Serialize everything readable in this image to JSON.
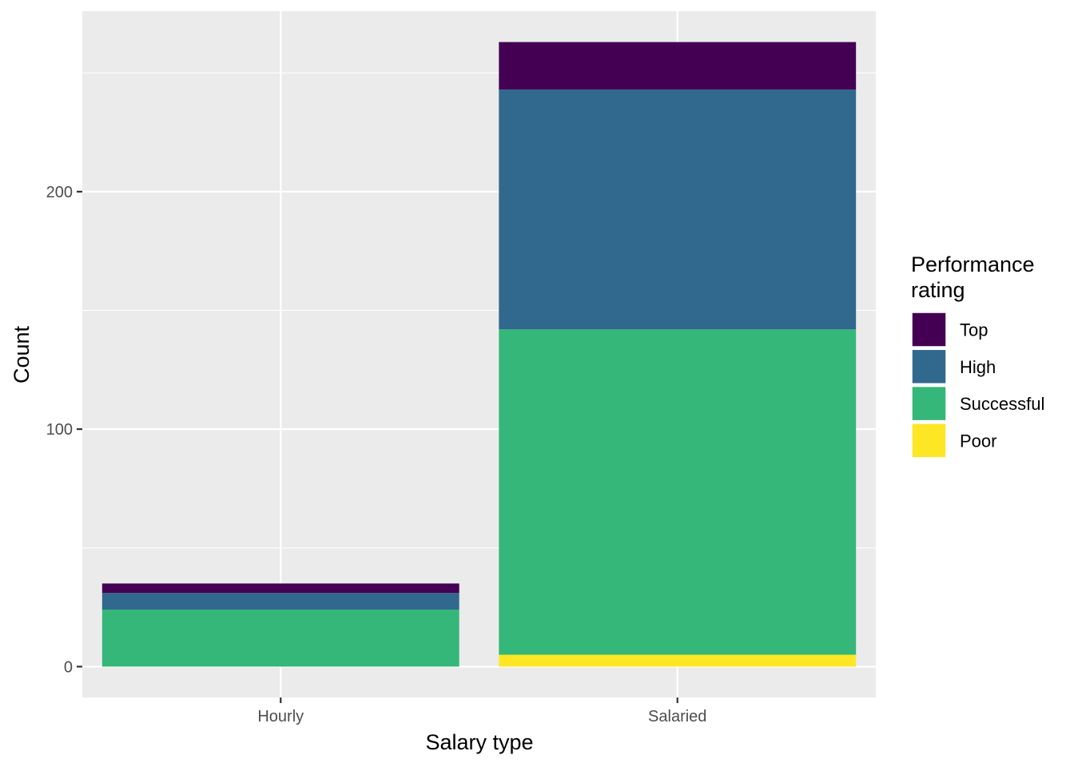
{
  "chart_data": {
    "type": "bar",
    "stacked": true,
    "categories": [
      "Hourly",
      "Salaried"
    ],
    "series": [
      {
        "name": "Top",
        "values": [
          4,
          20
        ],
        "color": "#440154"
      },
      {
        "name": "High",
        "values": [
          7,
          101
        ],
        "color": "#31688E"
      },
      {
        "name": "Successful",
        "values": [
          24,
          137
        ],
        "color": "#35B779"
      },
      {
        "name": "Poor",
        "values": [
          0,
          5
        ],
        "color": "#FDE725"
      }
    ],
    "stack_order_bottom_to_top": [
      "Poor",
      "Successful",
      "High",
      "Top"
    ],
    "xlabel": "Salary type",
    "ylabel": "Count",
    "yticks": [
      0,
      100,
      200
    ],
    "ylim": [
      -13,
      276
    ],
    "grid": true,
    "legend": {
      "title_lines": [
        "Performance",
        "rating"
      ],
      "placement": "right"
    },
    "panel_background": "#EBEBEB",
    "gridline_color": "#FFFFFF"
  }
}
